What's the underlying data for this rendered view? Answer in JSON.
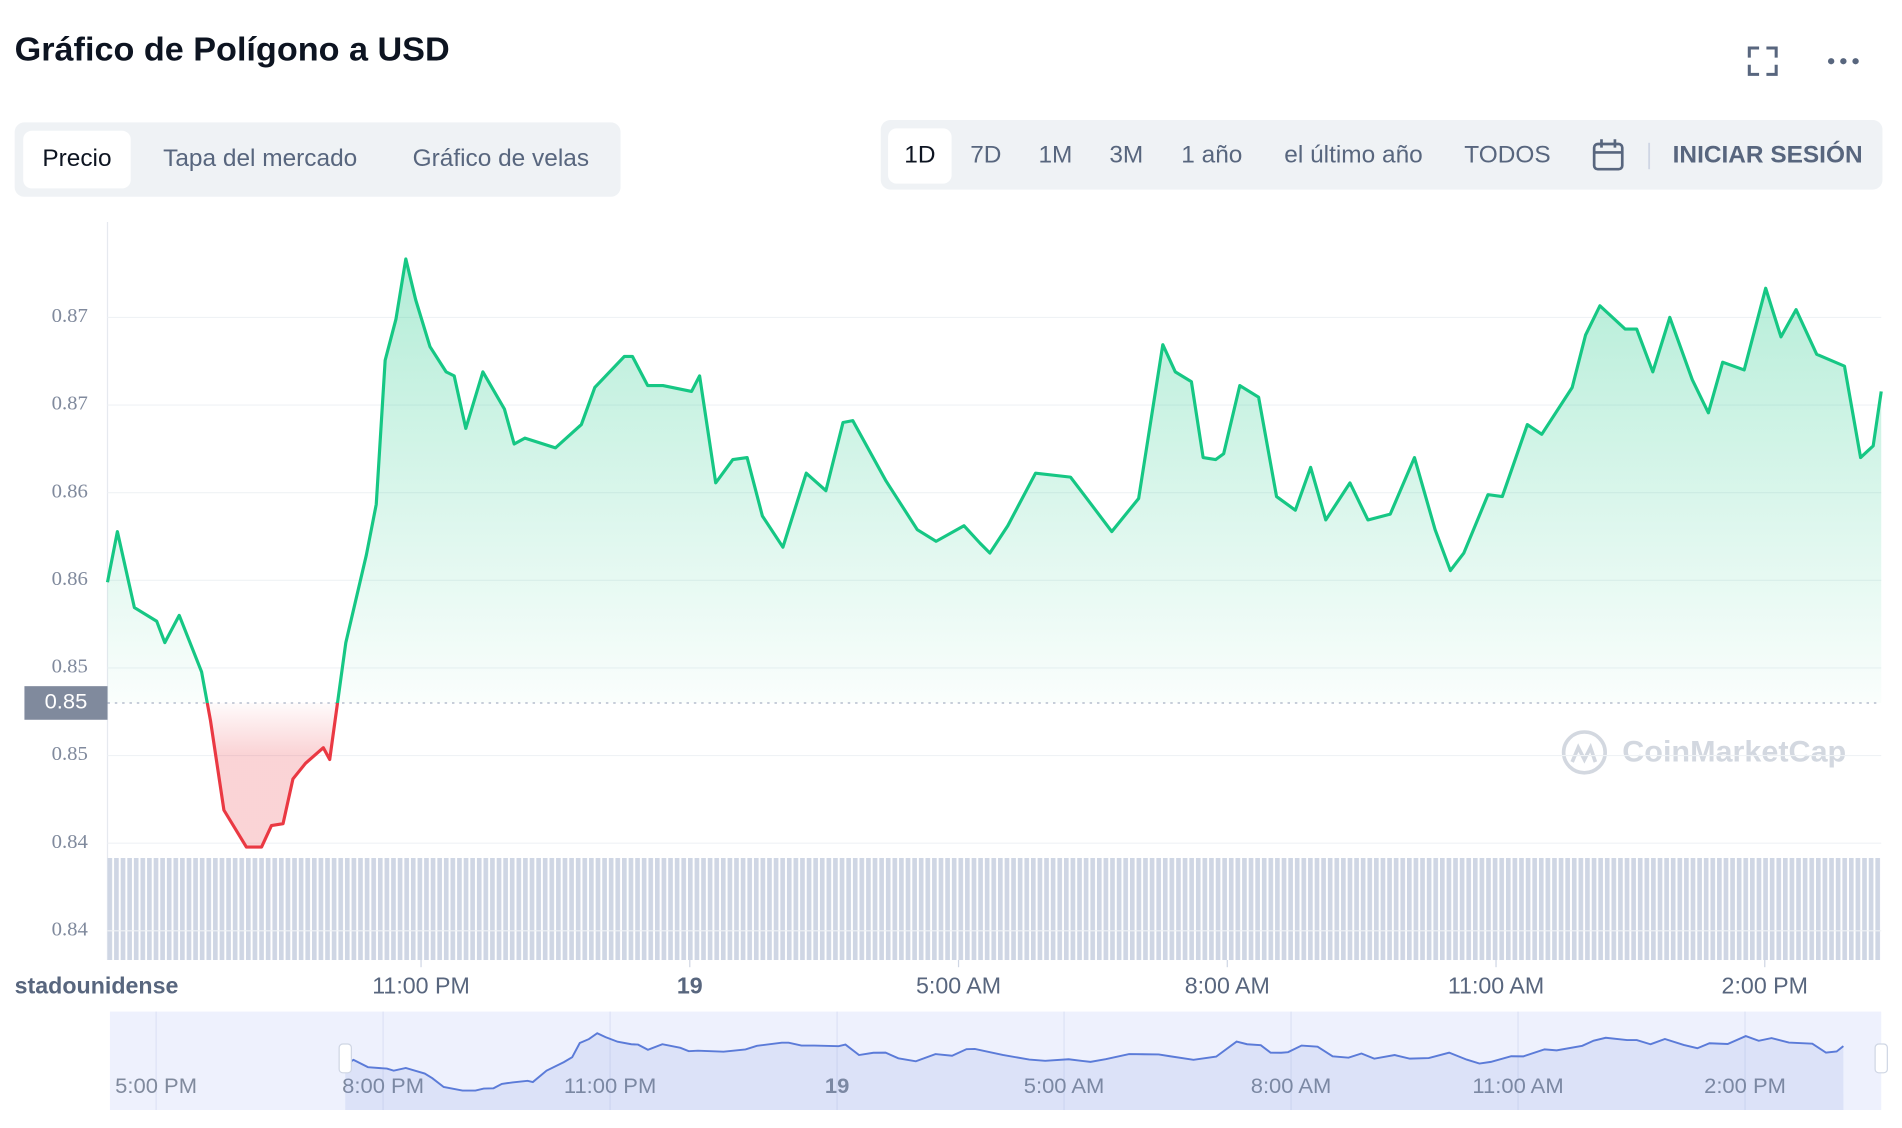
{
  "header": {
    "title": "Gráfico de Polígono a USD",
    "tabs": [
      "Precio",
      "Tapa del mercado",
      "Gráfico de velas"
    ],
    "ranges": [
      "1D",
      "7D",
      "1M",
      "3M",
      "1 año",
      "el último año",
      "TODOS"
    ],
    "login": "INICIAR SESIÓN",
    "currency": "stadounidense",
    "watermark": "CoinMarketCap"
  },
  "chart_data": {
    "type": "line",
    "x": [
      19.5,
      19.61,
      19.8,
      20.05,
      20.14,
      20.3,
      20.55,
      20.65,
      20.8,
      21.05,
      21.22,
      21.33,
      21.46,
      21.57,
      21.71,
      21.91,
      21.98,
      22.16,
      22.39,
      22.5,
      22.6,
      22.72,
      22.83,
      22.94,
      23.1,
      23.28,
      23.37,
      23.5,
      23.69,
      23.93,
      24.04,
      24.16,
      24.5,
      24.79,
      24.94,
      25.27,
      25.36,
      25.53,
      25.7,
      26.02,
      26.11,
      26.29,
      26.48,
      26.64,
      26.81,
      27.04,
      27.3,
      27.52,
      27.71,
      27.82,
      28.19,
      28.54,
      28.75,
      29.06,
      29.24,
      29.35,
      29.55,
      29.86,
      30.25,
      30.4,
      30.71,
      31.01,
      31.28,
      31.42,
      31.6,
      31.73,
      31.87,
      31.96,
      32.14,
      32.35,
      32.55,
      32.76,
      32.93,
      33.1,
      33.37,
      33.57,
      33.82,
      34.09,
      34.32,
      34.49,
      34.64,
      34.91,
      35.07,
      35.35,
      35.51,
      35.85,
      36.0,
      36.16,
      36.44,
      36.57,
      36.75,
      36.94,
      37.19,
      37.37,
      37.53,
      37.77,
      38.01,
      38.18,
      38.35,
      38.58,
      38.89,
      39.07,
      39.21,
      39.3
    ],
    "values": [
      0.8564,
      0.859,
      0.8551,
      0.8544,
      0.8533,
      0.8547,
      0.8518,
      0.8493,
      0.8447,
      0.8428,
      0.8428,
      0.8439,
      0.844,
      0.8463,
      0.8471,
      0.8479,
      0.8473,
      0.8533,
      0.8578,
      0.8604,
      0.8678,
      0.8699,
      0.873,
      0.8709,
      0.8685,
      0.8672,
      0.867,
      0.8643,
      0.8672,
      0.8653,
      0.8635,
      0.8638,
      0.8633,
      0.8645,
      0.8664,
      0.868,
      0.868,
      0.8665,
      0.8665,
      0.8662,
      0.867,
      0.8615,
      0.8627,
      0.8628,
      0.8598,
      0.8582,
      0.862,
      0.8611,
      0.8646,
      0.8647,
      0.8616,
      0.8591,
      0.8585,
      0.8593,
      0.8584,
      0.8579,
      0.8593,
      0.862,
      0.8618,
      0.8609,
      0.859,
      0.8607,
      0.8686,
      0.8672,
      0.8667,
      0.8628,
      0.8627,
      0.863,
      0.8665,
      0.8659,
      0.8608,
      0.8601,
      0.8623,
      0.8596,
      0.8615,
      0.8596,
      0.8599,
      0.8628,
      0.8591,
      0.857,
      0.8579,
      0.8609,
      0.8608,
      0.8645,
      0.864,
      0.8664,
      0.8691,
      0.8706,
      0.8694,
      0.8694,
      0.8672,
      0.87,
      0.8668,
      0.8651,
      0.8677,
      0.8673,
      0.8715,
      0.869,
      0.8704,
      0.8681,
      0.8675,
      0.8628,
      0.8634,
      0.8662
    ],
    "up_color": "#16c784",
    "down_color": "#ea3943",
    "current_price": {
      "value": 0.8502,
      "label": "0.85"
    },
    "xlim": [
      19.5,
      39.3
    ],
    "ylim": [
      0.837,
      0.8749
    ],
    "xticks": [
      {
        "value": 23,
        "label": "11:00 PM"
      },
      {
        "value": 26,
        "label": "19"
      },
      {
        "value": 29,
        "label": "5:00 AM"
      },
      {
        "value": 32,
        "label": "8:00 AM"
      },
      {
        "value": 35,
        "label": "11:00 AM"
      },
      {
        "value": 38,
        "label": "2:00 PM"
      }
    ],
    "yticks": [
      {
        "value": 0.8385,
        "label": "0.84"
      },
      {
        "value": 0.843,
        "label": "0.84"
      },
      {
        "value": 0.8475,
        "label": "0.85"
      },
      {
        "value": 0.852,
        "label": "0.85"
      },
      {
        "value": 0.8565,
        "label": "0.86"
      },
      {
        "value": 0.861,
        "label": "0.86"
      },
      {
        "value": 0.8655,
        "label": "0.87"
      },
      {
        "value": 0.87,
        "label": "0.87"
      }
    ],
    "grid": true,
    "navigator": {
      "xlim": [
        16.39,
        39.8
      ],
      "color": "#5b7bd8",
      "xticks": [
        {
          "value": 17,
          "label": "5:00 PM"
        },
        {
          "value": 20,
          "label": "8:00 PM"
        },
        {
          "value": 23,
          "label": "11:00 PM"
        },
        {
          "value": 26,
          "label": "19"
        },
        {
          "value": 29,
          "label": "5:00 AM"
        },
        {
          "value": 32,
          "label": "8:00 AM"
        },
        {
          "value": 35,
          "label": "11:00 AM"
        },
        {
          "value": 38,
          "label": "2:00 PM"
        }
      ]
    }
  }
}
